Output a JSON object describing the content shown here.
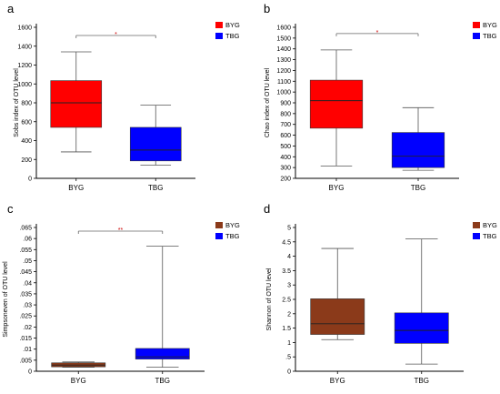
{
  "chart_data": [
    {
      "panel": "a",
      "type": "box",
      "ylabel": "Sobs index of OTU level",
      "ylim": [
        0,
        1600
      ],
      "yticks": [
        0,
        200,
        400,
        600,
        800,
        1000,
        1200,
        1400,
        1600
      ],
      "categories": [
        "BYG",
        "TBG"
      ],
      "series": [
        {
          "name": "BYG",
          "color": "#ff0000",
          "min": 280,
          "q1": 540,
          "median": 800,
          "q3": 1035,
          "max": 1340
        },
        {
          "name": "TBG",
          "color": "#0000ff",
          "min": 140,
          "q1": 185,
          "median": 300,
          "q3": 540,
          "max": 775
        }
      ],
      "significance": "*"
    },
    {
      "panel": "b",
      "type": "box",
      "ylabel": "Chao index of OTU level",
      "ylim": [
        200,
        1600
      ],
      "yticks": [
        200,
        300,
        400,
        500,
        600,
        700,
        800,
        900,
        1000,
        1100,
        1200,
        1300,
        1400,
        1500,
        1600
      ],
      "categories": [
        "BYG",
        "TBG"
      ],
      "series": [
        {
          "name": "BYG",
          "color": "#ff0000",
          "min": 315,
          "q1": 665,
          "median": 920,
          "q3": 1110,
          "max": 1390
        },
        {
          "name": "TBG",
          "color": "#0000ff",
          "min": 275,
          "q1": 300,
          "median": 405,
          "q3": 625,
          "max": 855
        }
      ],
      "significance": "*"
    },
    {
      "panel": "c",
      "type": "box",
      "ylabel": "Simpsoneven of OTU level",
      "ylim": [
        0,
        0.065
      ],
      "yticks": [
        0,
        0.005,
        0.01,
        0.015,
        0.02,
        0.025,
        0.03,
        0.035,
        0.04,
        0.045,
        0.05,
        0.055,
        0.06,
        0.065
      ],
      "categories": [
        "BYG",
        "TBG"
      ],
      "series": [
        {
          "name": "BYG",
          "color": "#8b3a1a",
          "min": 0.0018,
          "q1": 0.002,
          "median": 0.0028,
          "q3": 0.0038,
          "max": 0.0042
        },
        {
          "name": "TBG",
          "color": "#0000ff",
          "min": 0.0018,
          "q1": 0.0055,
          "median": 0.0065,
          "q3": 0.0103,
          "max": 0.0565
        }
      ],
      "significance": "**"
    },
    {
      "panel": "d",
      "type": "box",
      "ylabel": "Shannon of OTU level",
      "ylim": [
        0,
        5
      ],
      "yticks": [
        0,
        0.5,
        1,
        1.5,
        2,
        2.5,
        3,
        3.5,
        4,
        4.5,
        5
      ],
      "categories": [
        "BYG",
        "TBG"
      ],
      "series": [
        {
          "name": "BYG",
          "color": "#8b3a1a",
          "min": 1.1,
          "q1": 1.28,
          "median": 1.65,
          "q3": 2.52,
          "max": 4.27
        },
        {
          "name": "TBG",
          "color": "#0000ff",
          "min": 0.25,
          "q1": 0.97,
          "median": 1.42,
          "q3": 2.03,
          "max": 4.6
        }
      ],
      "significance": ""
    }
  ]
}
